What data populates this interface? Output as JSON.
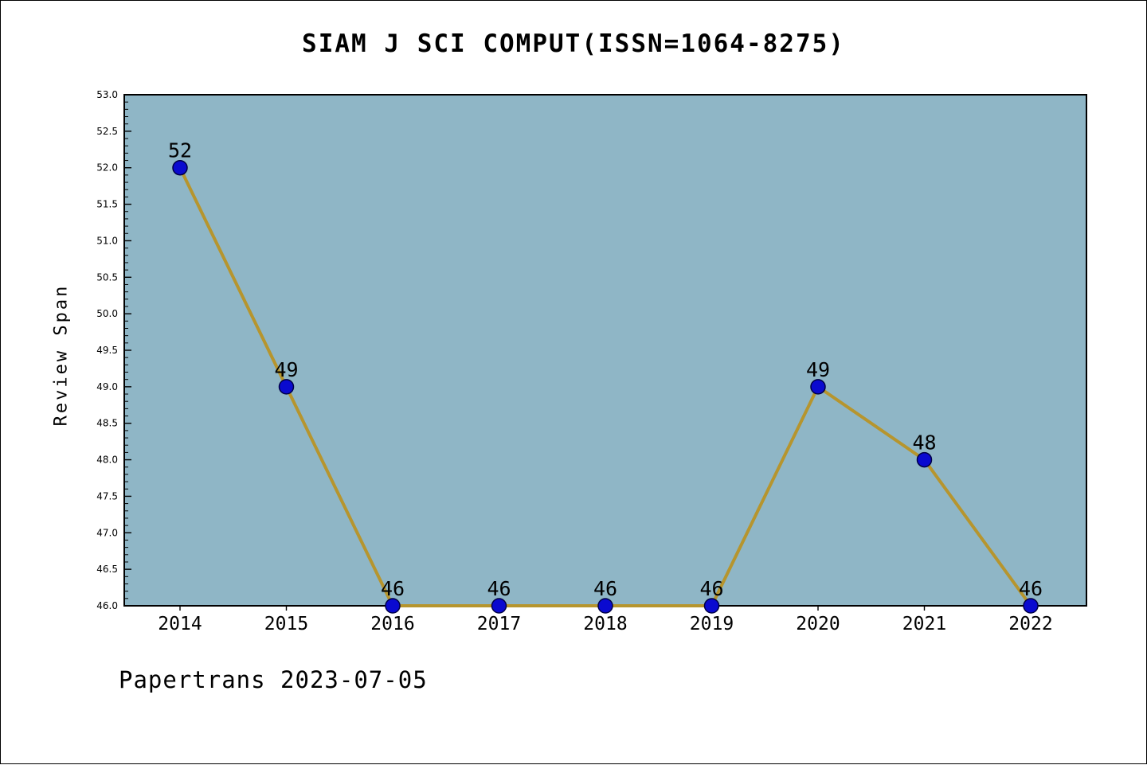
{
  "title": "SIAM J SCI COMPUT(ISSN=1064-8275)",
  "footer": "Papertrans 2023-07-05",
  "chart_data": {
    "type": "line",
    "title": "SIAM J SCI COMPUT(ISSN=1064-8275)",
    "x": [
      2014,
      2015,
      2016,
      2017,
      2018,
      2019,
      2020,
      2021,
      2022
    ],
    "values": [
      52,
      49,
      46,
      46,
      46,
      46,
      49,
      48,
      46
    ],
    "point_labels": [
      "52",
      "49",
      "46",
      "46",
      "46",
      "46",
      "49",
      "48",
      "46"
    ],
    "xlabel": "",
    "ylabel": "Review Span",
    "ylim": [
      46.0,
      53.0
    ],
    "ytick_step": 0.5,
    "ytick_minor_step": 0.1,
    "grid": false,
    "legend": "none",
    "colors": {
      "plot_bg": "#8fb6c6",
      "line": "#b6952e",
      "marker_fill": "#0a0ad0",
      "marker_edge": "#000046",
      "axis": "#000000",
      "text": "#000000"
    },
    "marker_radius": 9,
    "line_width": 4
  }
}
